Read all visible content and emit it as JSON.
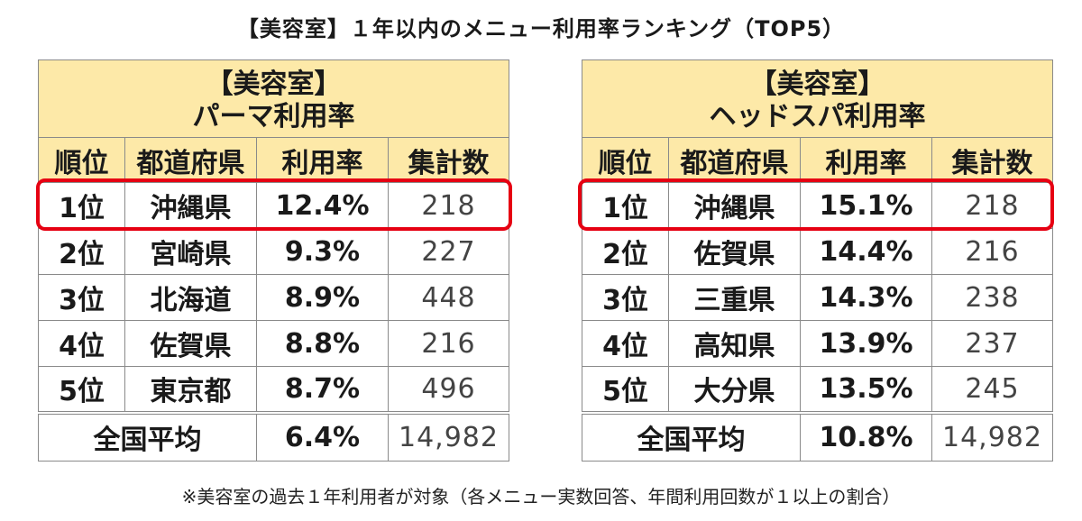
{
  "title": "【美容室】１年以内のメニュー利用率ランキング（TOP5）",
  "headers": {
    "rank": "順位",
    "prefecture": "都道府県",
    "rate": "利用率",
    "count": "集計数"
  },
  "tables": [
    {
      "caption_line1": "【美容室】",
      "caption_line2": "パーマ利用率",
      "rows": [
        {
          "rank": "1位",
          "prefecture": "沖縄県",
          "rate": "12.4%",
          "count": "218"
        },
        {
          "rank": "2位",
          "prefecture": "宮崎県",
          "rate": "9.3%",
          "count": "227"
        },
        {
          "rank": "3位",
          "prefecture": "北海道",
          "rate": "8.9%",
          "count": "448"
        },
        {
          "rank": "4位",
          "prefecture": "佐賀県",
          "rate": "8.8%",
          "count": "216"
        },
        {
          "rank": "5位",
          "prefecture": "東京都",
          "rate": "8.7%",
          "count": "496"
        }
      ],
      "average": {
        "label": "全国平均",
        "rate": "6.4%",
        "count": "14,982"
      }
    },
    {
      "caption_line1": "【美容室】",
      "caption_line2": "ヘッドスパ利用率",
      "rows": [
        {
          "rank": "1位",
          "prefecture": "沖縄県",
          "rate": "15.1%",
          "count": "218"
        },
        {
          "rank": "2位",
          "prefecture": "佐賀県",
          "rate": "14.4%",
          "count": "216"
        },
        {
          "rank": "3位",
          "prefecture": "三重県",
          "rate": "14.3%",
          "count": "238"
        },
        {
          "rank": "4位",
          "prefecture": "高知県",
          "rate": "13.9%",
          "count": "237"
        },
        {
          "rank": "5位",
          "prefecture": "大分県",
          "rate": "13.5%",
          "count": "245"
        }
      ],
      "average": {
        "label": "全国平均",
        "rate": "10.8%",
        "count": "14,982"
      }
    }
  ],
  "footnote": "※美容室の過去１年利用者が対象（各メニュー実数回答、年間利用回数が１以上の割合）",
  "colors": {
    "header_fill": "#fde9a8",
    "highlight": "#e60012",
    "border": "#8a8a8a"
  }
}
